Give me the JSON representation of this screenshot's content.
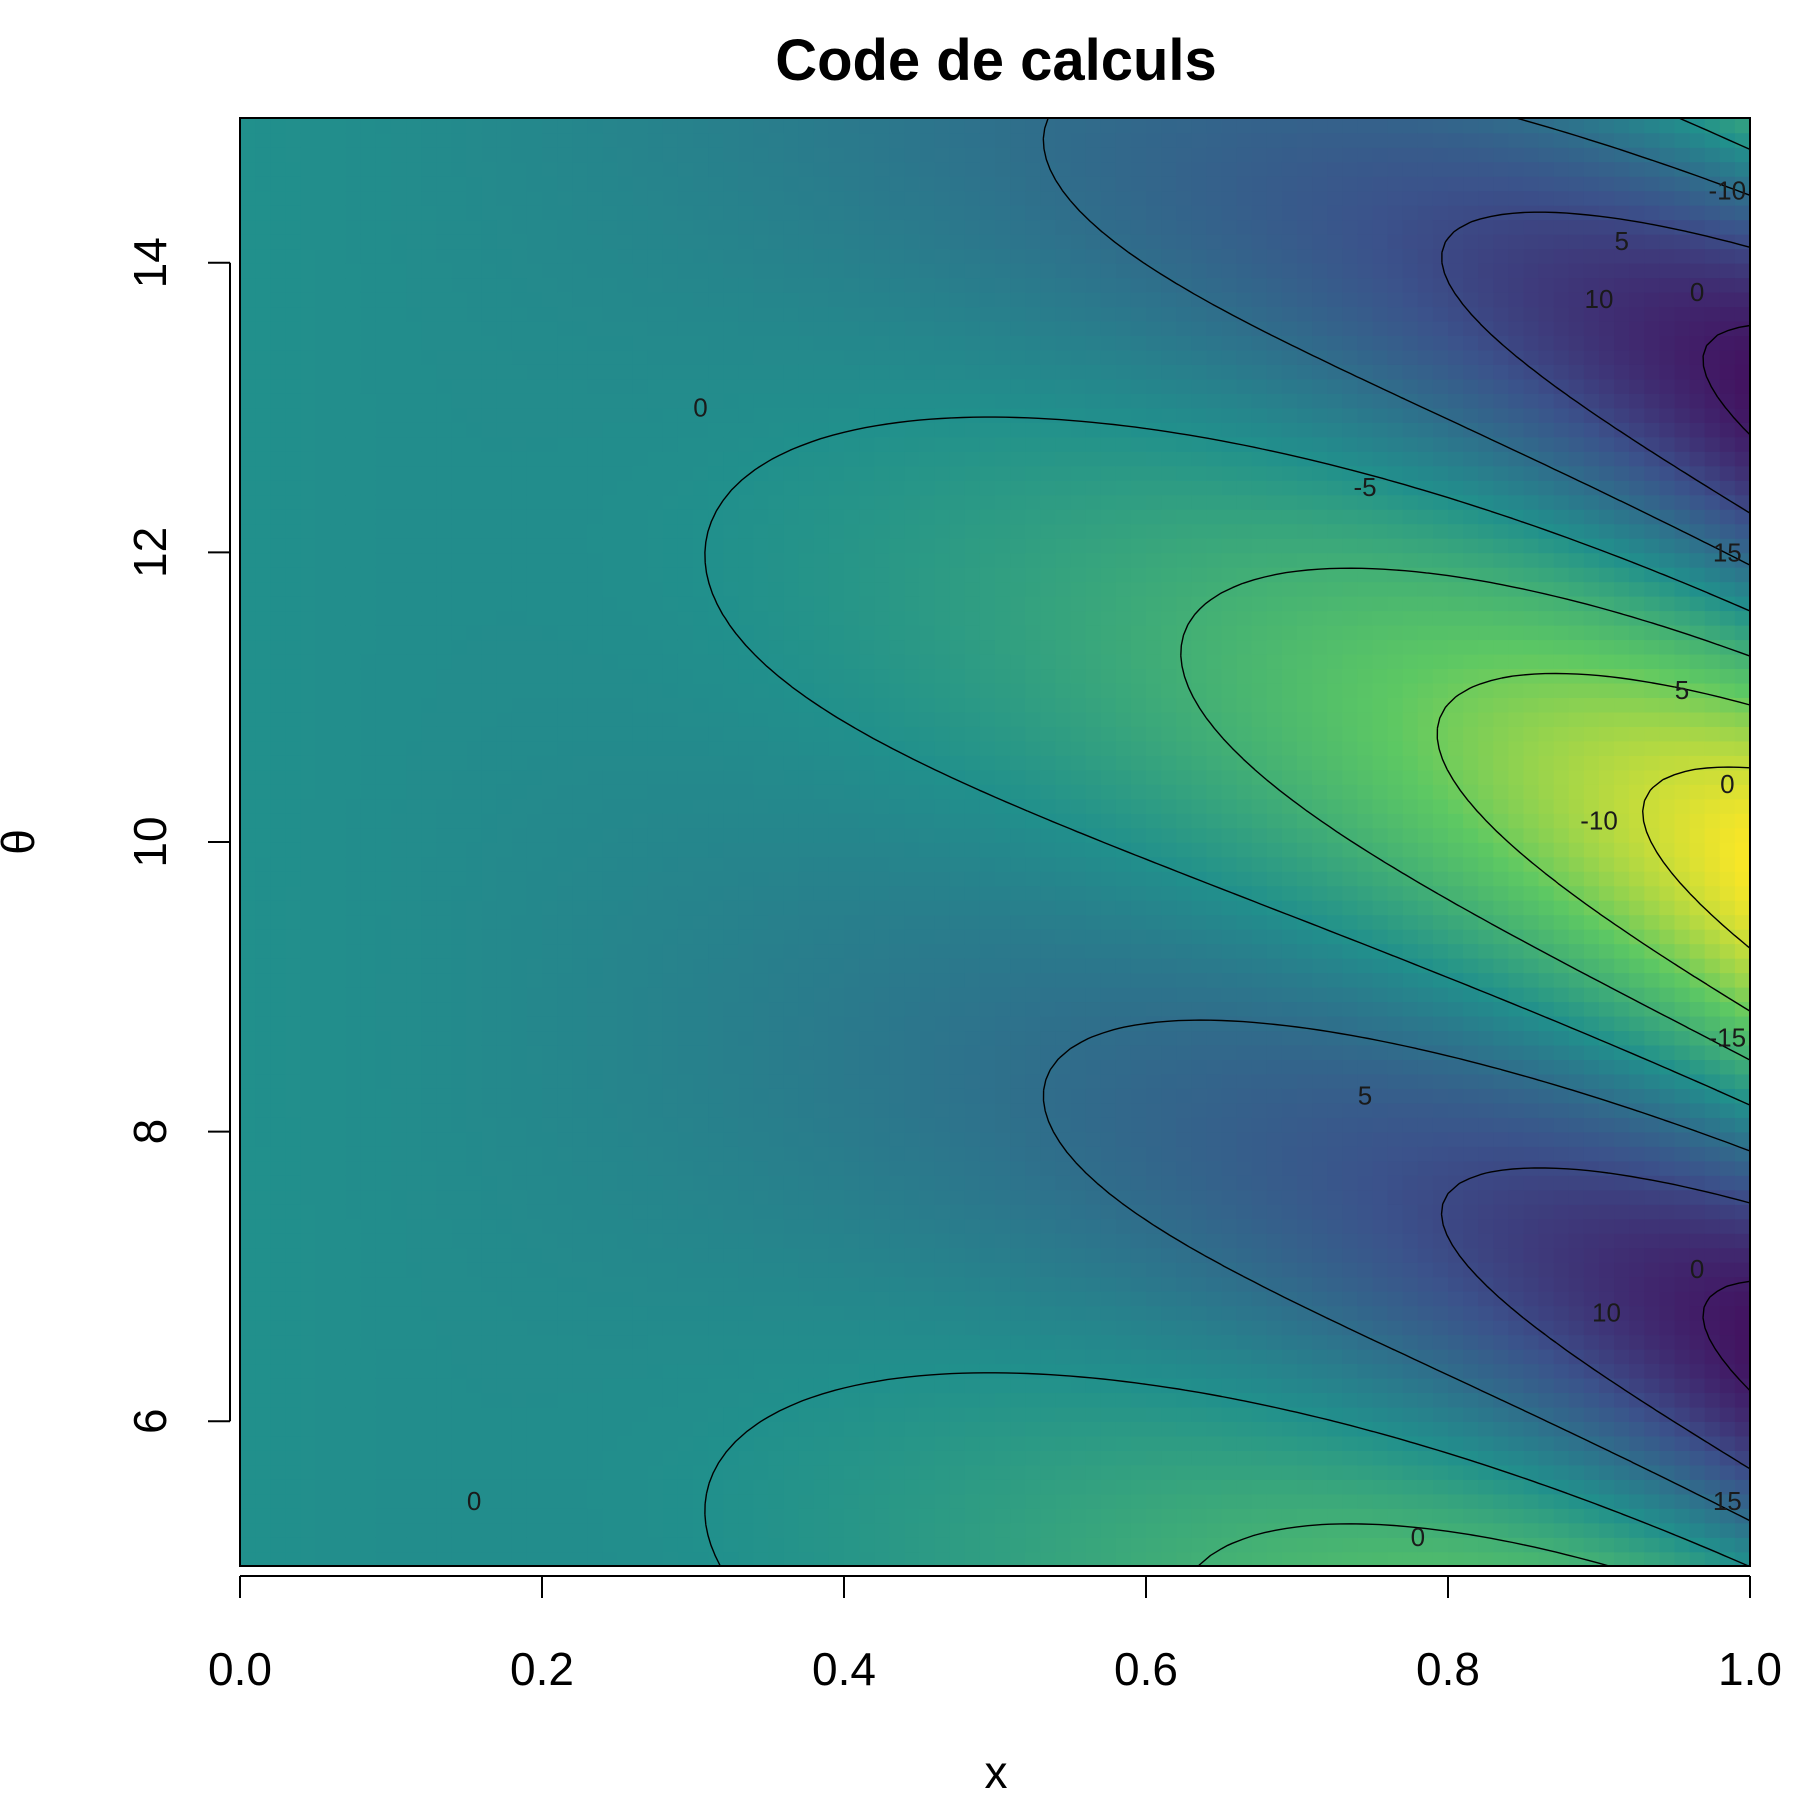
{
  "chart_data": {
    "type": "heatmap",
    "title": "Code de calculs",
    "xlabel": "x",
    "ylabel": "θ",
    "xlim": [
      0.0,
      1.0
    ],
    "ylim": [
      5.0,
      15.0
    ],
    "x_ticks": [
      "0.0",
      "0.2",
      "0.4",
      "0.6",
      "0.8",
      "1.0"
    ],
    "y_ticks": [
      "6",
      "8",
      "10",
      "12",
      "14"
    ],
    "colormap": [
      "#440154",
      "#3b528b",
      "#21908c",
      "#5dc863",
      "#fde725"
    ],
    "zlim": [
      -18,
      18
    ],
    "contour_levels": [
      "-15",
      "-10",
      "-5",
      "0",
      "5",
      "10",
      "15"
    ],
    "contour_labels": [
      {
        "text": "0",
        "x": 0.155,
        "y": 5.45
      },
      {
        "text": "0",
        "x": 0.305,
        "y": 13.0
      },
      {
        "text": "0",
        "x": 0.78,
        "y": 5.2
      },
      {
        "text": "-5",
        "x": 0.745,
        "y": 12.45
      },
      {
        "text": "5",
        "x": 0.745,
        "y": 8.25
      },
      {
        "text": "10",
        "x": 0.905,
        "y": 6.75
      },
      {
        "text": "15",
        "x": 0.985,
        "y": 5.45
      },
      {
        "text": "-10",
        "x": 0.9,
        "y": 10.15
      },
      {
        "text": "-15",
        "x": 0.985,
        "y": 8.65
      },
      {
        "text": "0",
        "x": 0.965,
        "y": 7.05
      },
      {
        "text": "15",
        "x": 0.985,
        "y": 12.0
      },
      {
        "text": "5",
        "x": 0.955,
        "y": 11.05
      },
      {
        "text": "0",
        "x": 0.985,
        "y": 10.4
      },
      {
        "text": "10",
        "x": 0.9,
        "y": 13.75
      },
      {
        "text": "5",
        "x": 0.915,
        "y": 14.15
      },
      {
        "text": "0",
        "x": 0.965,
        "y": 13.8
      },
      {
        "text": "-10",
        "x": 0.985,
        "y": 14.5
      }
    ]
  }
}
